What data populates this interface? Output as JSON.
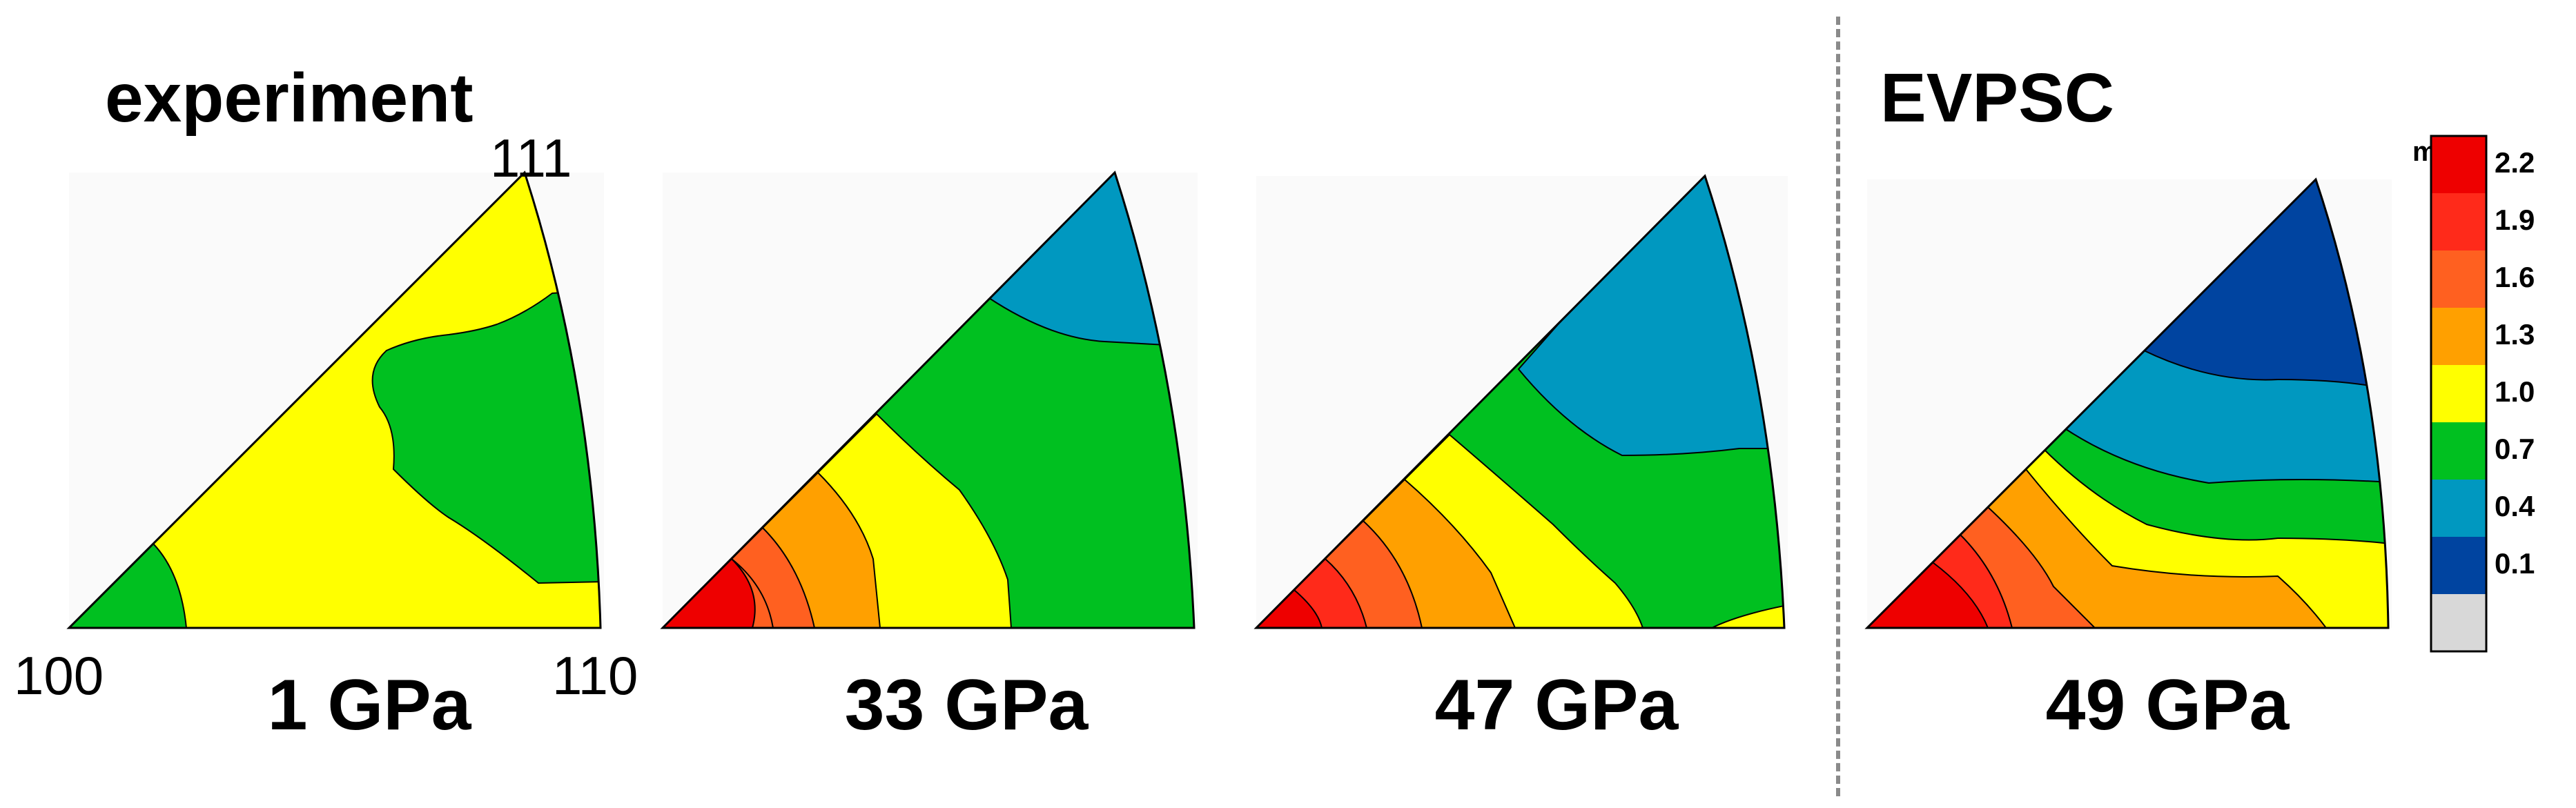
{
  "chart_data": {
    "type": "heatmap",
    "description_labels": {
      "experiment_title": "experiment",
      "simulation_title": "EVPSC"
    },
    "corners": {
      "c100": "100",
      "c110": "110",
      "c111": "111"
    },
    "panels": [
      {
        "pressure": "1 GPa",
        "group": "experiment"
      },
      {
        "pressure": "33 GPa",
        "group": "experiment"
      },
      {
        "pressure": "47 GPa",
        "group": "experiment"
      },
      {
        "pressure": "49 GPa",
        "group": "EVPSC"
      }
    ],
    "colorbar": {
      "title": "m.r.d.",
      "ticks": [
        "2.2",
        "1.9",
        "1.6",
        "1.3",
        "1.0",
        "0.7",
        "0.4",
        "0.1"
      ],
      "bands_top_to_bottom": [
        "#ee0000",
        "#ff2a1a",
        "#ff6020",
        "#ffa000",
        "#ffff00",
        "#00c020",
        "#0098c0",
        "#0044a0",
        "#d8d8d8"
      ]
    }
  }
}
